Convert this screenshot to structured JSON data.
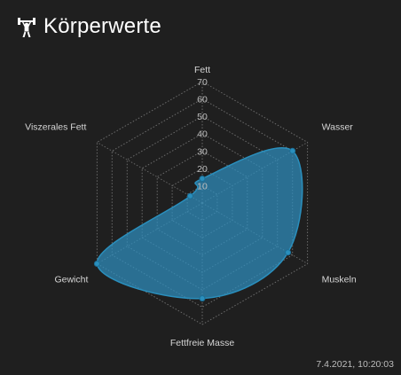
{
  "header": {
    "title": "Körperwerte",
    "icon": "weightlifter-icon"
  },
  "chart_data": {
    "type": "radar",
    "categories": [
      "Fett",
      "Wasser",
      "Muskeln",
      "Fettfreie Masse",
      "Gewicht",
      "Viszerales Fett"
    ],
    "series": [
      {
        "values": [
          14,
          60,
          57,
          55,
          70,
          8
        ]
      }
    ],
    "rlim": [
      0,
      70
    ],
    "ticks": [
      10,
      20,
      30,
      40,
      50,
      60,
      70
    ],
    "tick_labels": [
      "10",
      "20",
      "30",
      "40",
      "50",
      "60",
      "70"
    ],
    "line_color": "#2a8fbd",
    "fill_color": "#2f8fbf",
    "grid": true,
    "grid_color": "#6b6b6b"
  },
  "footer": {
    "timestamp": "7.4.2021, 10:20:03"
  }
}
